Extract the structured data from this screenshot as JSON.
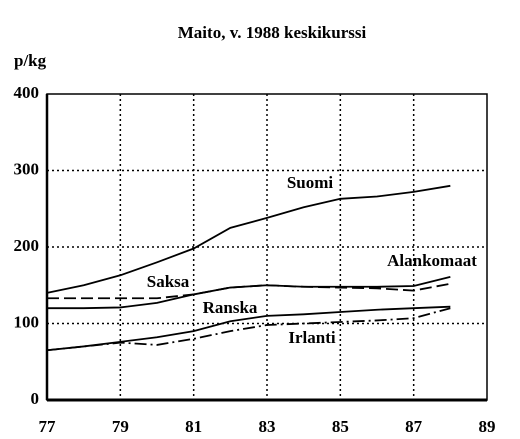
{
  "chart_data": {
    "type": "line",
    "title": "Maito, v. 1988 keskikurssi",
    "y_label": "p/kg",
    "x": [
      77,
      78,
      79,
      80,
      81,
      82,
      83,
      84,
      85,
      86,
      87,
      88
    ],
    "series": [
      {
        "name": "Suomi",
        "color": "#000000",
        "style": "solid",
        "values": [
          140,
          150,
          163,
          180,
          198,
          225,
          238,
          252,
          263,
          266,
          272,
          280
        ]
      },
      {
        "name": "Saksa",
        "color": "#000000",
        "style": "dashed",
        "values": [
          133,
          133,
          133,
          133,
          138,
          147,
          150,
          148,
          147,
          146,
          143,
          152
        ]
      },
      {
        "name": "Alankomaat",
        "color": "#000000",
        "style": "solid",
        "values": [
          120,
          120,
          121,
          127,
          138,
          147,
          150,
          148,
          148,
          148,
          149,
          161
        ]
      },
      {
        "name": "Ranska",
        "color": "#000000",
        "style": "solid",
        "values": [
          65,
          70,
          76,
          82,
          90,
          103,
          110,
          112,
          115,
          118,
          120,
          122
        ]
      },
      {
        "name": "Irlanti",
        "color": "#000000",
        "style": "dashdot",
        "values": [
          65,
          70,
          75,
          72,
          80,
          90,
          98,
          100,
          102,
          104,
          107,
          120
        ]
      }
    ],
    "xlim": [
      77,
      89
    ],
    "xticks": [
      77,
      79,
      81,
      83,
      85,
      87,
      89
    ],
    "ylim": [
      0,
      400
    ],
    "yticks": [
      0,
      100,
      200,
      300,
      400
    ],
    "grid": true
  }
}
